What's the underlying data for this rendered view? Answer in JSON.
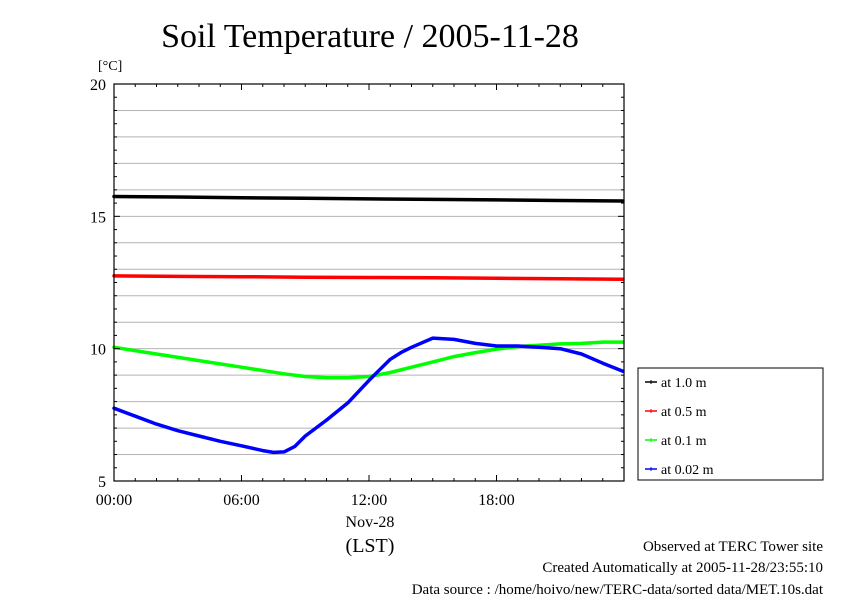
{
  "chart_data": {
    "type": "line",
    "title": "Soil Temperature / 2005-11-28",
    "ylabel": "[°C]",
    "xlabel": "(LST)",
    "date_label": "Nov-28",
    "ylim": [
      5,
      20
    ],
    "y_ticks": [
      "5",
      "10",
      "15",
      "20"
    ],
    "xlim": [
      0,
      24
    ],
    "x_ticks": [
      {
        "hour": 0,
        "label": "00:00"
      },
      {
        "hour": 6,
        "label": "06:00"
      },
      {
        "hour": 12,
        "label": "12:00"
      },
      {
        "hour": 18,
        "label": "18:00"
      }
    ],
    "grid": true,
    "legend_placement": "right",
    "series": [
      {
        "name": "at 1.0 m",
        "color": "#000000",
        "x": [
          0,
          3,
          6,
          9,
          12,
          15,
          18,
          21,
          23.95
        ],
        "values": [
          15.75,
          15.73,
          15.7,
          15.68,
          15.66,
          15.64,
          15.62,
          15.6,
          15.58
        ]
      },
      {
        "name": "at 0.5 m",
        "color": "#ff0000",
        "x": [
          0,
          3,
          6,
          9,
          12,
          15,
          18,
          21,
          23.95
        ],
        "values": [
          12.75,
          12.73,
          12.72,
          12.7,
          12.69,
          12.68,
          12.66,
          12.64,
          12.62
        ]
      },
      {
        "name": "at 0.1 m",
        "color": "#00ff00",
        "x": [
          0,
          2,
          4,
          6,
          8,
          9,
          10,
          11,
          12,
          13,
          14,
          15,
          16,
          17,
          18,
          19,
          20,
          21,
          22,
          23,
          23.95
        ],
        "values": [
          10.05,
          9.8,
          9.55,
          9.3,
          9.05,
          8.95,
          8.9,
          8.9,
          8.95,
          9.1,
          9.3,
          9.5,
          9.7,
          9.85,
          9.98,
          10.08,
          10.13,
          10.18,
          10.2,
          10.25,
          10.25
        ]
      },
      {
        "name": "at 0.02 m",
        "color": "#0000ff",
        "x": [
          0,
          1,
          2,
          3,
          4,
          5,
          6,
          7,
          7.5,
          8,
          8.5,
          9,
          10,
          11,
          12,
          12.5,
          13,
          13.5,
          14,
          15,
          16,
          17,
          18,
          19,
          20,
          21,
          22,
          23,
          23.95
        ],
        "values": [
          7.75,
          7.45,
          7.15,
          6.9,
          6.7,
          6.5,
          6.33,
          6.15,
          6.08,
          6.1,
          6.3,
          6.7,
          7.3,
          7.95,
          8.8,
          9.2,
          9.6,
          9.85,
          10.05,
          10.4,
          10.35,
          10.2,
          10.1,
          10.1,
          10.05,
          10.0,
          9.8,
          9.45,
          9.15
        ]
      }
    ]
  },
  "footer": {
    "site": "Observed at TERC Tower site",
    "created": "Created Automatically at 2005-11-28/23:55:10",
    "source": "Data source : /home/hoivo/new/TERC-data/sorted data/MET.10s.dat"
  }
}
